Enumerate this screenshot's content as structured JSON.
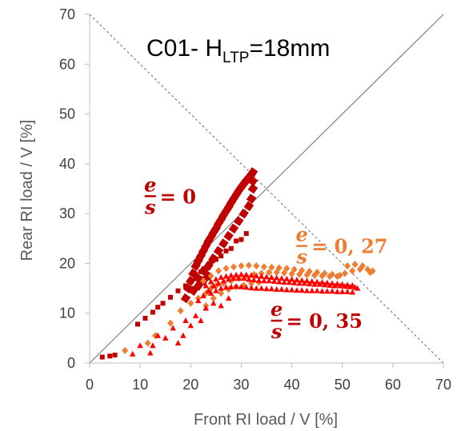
{
  "chart_data": {
    "type": "scatter",
    "title": {
      "main": "C01- H",
      "subscript": "LTP",
      "suffix": "=18mm"
    },
    "xlabel": "Front RI load / V [%]",
    "ylabel": "Rear RI load / V [%]",
    "xlim": [
      0,
      70
    ],
    "ylim": [
      0,
      70
    ],
    "x_ticks": [
      "0",
      "10",
      "20",
      "30",
      "40",
      "50",
      "60",
      "70"
    ],
    "y_ticks": [
      "0",
      "10",
      "20",
      "30",
      "40",
      "50",
      "60",
      "70"
    ],
    "grid": false,
    "legend": "none",
    "reference_lines": [
      {
        "name": "",
        "style": "solid",
        "color": "#808080",
        "from": [
          0,
          0
        ],
        "to": [
          70,
          70
        ]
      },
      {
        "name": "",
        "style": "dashed",
        "color": "#808080",
        "from": [
          0,
          70
        ],
        "to": [
          70,
          0
        ]
      }
    ],
    "annotations": [
      {
        "numerator": "e",
        "denominator": "s",
        "value": "= 0",
        "color": "#c00000"
      },
      {
        "numerator": "e",
        "denominator": "s",
        "value": "= 0, 27",
        "color": "#ed7d31"
      },
      {
        "numerator": "e",
        "denominator": "s",
        "value": "= 0, 35",
        "color": "#c00000"
      }
    ],
    "series": [
      {
        "color": "#c00000",
        "marker": "square",
        "points": [
          [
            2.5,
            1.2
          ],
          [
            4,
            1.4
          ],
          [
            5,
            1.6
          ],
          [
            9.5,
            7.8
          ],
          [
            11,
            9
          ],
          [
            12.5,
            10.2
          ],
          [
            13.5,
            11.2
          ],
          [
            14.5,
            12
          ],
          [
            16,
            13.2
          ],
          [
            17.5,
            14.5
          ],
          [
            19,
            15.5
          ],
          [
            20,
            16.3
          ],
          [
            21,
            17.2
          ],
          [
            22,
            18.3
          ],
          [
            23,
            19
          ],
          [
            24,
            20.3
          ],
          [
            25,
            20.8
          ],
          [
            26,
            21.5
          ],
          [
            27,
            22.5
          ],
          [
            28,
            23
          ],
          [
            29,
            24.5
          ],
          [
            30,
            24.8
          ],
          [
            31,
            26
          ]
        ]
      },
      {
        "color": "#c00000",
        "marker": "dense",
        "points": [
          [
            19,
            13
          ],
          [
            19.5,
            15
          ],
          [
            20,
            16.5
          ],
          [
            20.5,
            18
          ],
          [
            21,
            19.5
          ],
          [
            21.5,
            20.5
          ],
          [
            22,
            21.5
          ],
          [
            22.5,
            22.5
          ],
          [
            23,
            23.5
          ],
          [
            23.5,
            24.5
          ],
          [
            24,
            25.3
          ],
          [
            24.5,
            26.2
          ],
          [
            25,
            27
          ],
          [
            25.5,
            28
          ],
          [
            26,
            28.8
          ],
          [
            26.5,
            29.7
          ],
          [
            27,
            30.5
          ],
          [
            27.5,
            31.3
          ],
          [
            28,
            32.2
          ],
          [
            28.5,
            33
          ],
          [
            29,
            33.8
          ],
          [
            29.5,
            34.6
          ],
          [
            30,
            35.3
          ],
          [
            30.5,
            36
          ],
          [
            31,
            36.6
          ],
          [
            31.5,
            37.2
          ],
          [
            32,
            37.8
          ],
          [
            32.3,
            38.3
          ],
          [
            21.5,
            17
          ],
          [
            22.5,
            18.5
          ],
          [
            23.5,
            19.5
          ],
          [
            24.5,
            21
          ],
          [
            25.5,
            22.5
          ],
          [
            26.5,
            24
          ],
          [
            27.5,
            25.5
          ],
          [
            28.5,
            27
          ],
          [
            29.5,
            28.5
          ],
          [
            30.5,
            30
          ],
          [
            31.5,
            31.5
          ],
          [
            32,
            33
          ],
          [
            32.3,
            35
          ],
          [
            32.3,
            36.5
          ],
          [
            20.5,
            14.5
          ],
          [
            21.5,
            15.5
          ],
          [
            22.5,
            16.5
          ],
          [
            23.5,
            17.5
          ]
        ]
      },
      {
        "color": "#ed7d31",
        "marker": "diamond",
        "points": [
          [
            7,
            2.5
          ],
          [
            11.5,
            4
          ],
          [
            13,
            5.5
          ],
          [
            16,
            8
          ],
          [
            18,
            10.5
          ],
          [
            20,
            12
          ],
          [
            21.5,
            13
          ],
          [
            23,
            14
          ],
          [
            24,
            15
          ],
          [
            25,
            15.5
          ],
          [
            26.5,
            16
          ],
          [
            28,
            16.5
          ],
          [
            29.5,
            17
          ],
          [
            31,
            17.5
          ],
          [
            32.5,
            17.8
          ],
          [
            34,
            18
          ],
          [
            35.5,
            18.2
          ],
          [
            37,
            18.2
          ],
          [
            38.5,
            18.1
          ],
          [
            40,
            17.9
          ],
          [
            41.5,
            17.8
          ],
          [
            43,
            17.7
          ],
          [
            44.5,
            17.6
          ],
          [
            46,
            17.5
          ],
          [
            47.5,
            17.4
          ],
          [
            49,
            17.4
          ],
          [
            50.5,
            18
          ],
          [
            52,
            18.5
          ],
          [
            53.5,
            18.8
          ],
          [
            55,
            18.8
          ],
          [
            56,
            18.5
          ],
          [
            22.5,
            16.5
          ],
          [
            24,
            17.5
          ],
          [
            25.5,
            18.5
          ],
          [
            27,
            19
          ],
          [
            28.5,
            19.3
          ],
          [
            30,
            19.5
          ],
          [
            31.5,
            19.6
          ],
          [
            33,
            19.5
          ],
          [
            34.5,
            19.3
          ],
          [
            36,
            19.2
          ],
          [
            37.5,
            19.1
          ],
          [
            39,
            19
          ],
          [
            40.5,
            18.8
          ],
          [
            42,
            18.6
          ],
          [
            43.5,
            18.4
          ],
          [
            45,
            18.2
          ],
          [
            46.5,
            18
          ],
          [
            48,
            17.8
          ],
          [
            49.5,
            17.6
          ],
          [
            51,
            19.5
          ],
          [
            52.5,
            19.8
          ],
          [
            54,
            19.5
          ],
          [
            55.5,
            18.2
          ],
          [
            23,
            11.5
          ],
          [
            24.5,
            13
          ],
          [
            26,
            14
          ],
          [
            27.5,
            14.8
          ],
          [
            29,
            15.3
          ],
          [
            30.5,
            15.6
          ],
          [
            32,
            16
          ],
          [
            33.5,
            16.2
          ]
        ]
      },
      {
        "color": "#ff0000",
        "marker": "triangle",
        "points": [
          [
            8.5,
            1.8
          ],
          [
            10,
            3.5
          ],
          [
            12,
            2
          ],
          [
            12.5,
            3.5
          ],
          [
            13.5,
            5.5
          ],
          [
            15,
            5
          ],
          [
            16.5,
            7
          ],
          [
            17.5,
            4
          ],
          [
            18.5,
            5.5
          ],
          [
            19,
            8.5
          ],
          [
            20,
            7.5
          ],
          [
            21,
            9.5
          ],
          [
            22,
            8.5
          ],
          [
            23,
            11
          ],
          [
            24.5,
            12
          ],
          [
            26,
            11.5
          ],
          [
            27.5,
            13
          ],
          [
            21.5,
            12.5
          ],
          [
            22.5,
            13.5
          ],
          [
            23.5,
            14.5
          ],
          [
            24.5,
            15.5
          ],
          [
            25.5,
            16
          ],
          [
            26.5,
            16.5
          ],
          [
            27.5,
            16.8
          ],
          [
            28.5,
            17
          ],
          [
            29.5,
            17
          ],
          [
            30.5,
            17
          ],
          [
            31.5,
            16.8
          ],
          [
            32.5,
            16.7
          ],
          [
            33.5,
            16.6
          ],
          [
            34.5,
            16.5
          ],
          [
            35.5,
            16.5
          ],
          [
            36.5,
            16.4
          ],
          [
            37.5,
            16.3
          ],
          [
            38.5,
            16.2
          ],
          [
            39.5,
            16.2
          ],
          [
            40.5,
            16.1
          ],
          [
            41.5,
            16
          ],
          [
            42.5,
            16
          ],
          [
            43.5,
            15.9
          ],
          [
            44.5,
            15.8
          ],
          [
            45.5,
            15.8
          ],
          [
            46.5,
            15.7
          ],
          [
            47.5,
            15.6
          ],
          [
            48.5,
            15.5
          ],
          [
            49.5,
            15.5
          ],
          [
            50.5,
            15.4
          ],
          [
            51.5,
            15.3
          ],
          [
            52.5,
            15.2
          ],
          [
            53,
            15
          ],
          [
            23,
            15.5
          ],
          [
            24,
            16.3
          ],
          [
            25,
            16.8
          ],
          [
            26,
            17.2
          ],
          [
            27,
            17.4
          ],
          [
            28,
            17.6
          ],
          [
            29,
            17.7
          ],
          [
            30,
            17.8
          ],
          [
            31,
            17.7
          ],
          [
            32,
            17.6
          ],
          [
            33,
            17.5
          ],
          [
            34,
            17.4
          ],
          [
            35,
            17.3
          ],
          [
            36,
            17.2
          ],
          [
            37,
            17.1
          ],
          [
            38,
            17
          ],
          [
            39,
            16.9
          ],
          [
            40,
            16.8
          ],
          [
            41,
            16.7
          ],
          [
            42,
            16.6
          ],
          [
            43,
            16.5
          ],
          [
            44,
            16.4
          ],
          [
            45,
            16.3
          ],
          [
            46,
            16.2
          ],
          [
            47,
            16.1
          ],
          [
            48,
            16
          ],
          [
            49,
            15.9
          ],
          [
            50,
            15.8
          ],
          [
            51,
            15.7
          ],
          [
            52,
            15.6
          ],
          [
            24,
            14
          ],
          [
            25,
            14.5
          ],
          [
            26,
            15
          ],
          [
            27,
            15.2
          ],
          [
            28,
            15.3
          ],
          [
            29,
            15.4
          ],
          [
            30,
            15.3
          ],
          [
            31,
            15.2
          ],
          [
            32,
            15.1
          ],
          [
            33,
            15
          ],
          [
            34,
            15
          ],
          [
            35,
            14.9
          ],
          [
            36,
            14.9
          ],
          [
            37,
            14.8
          ],
          [
            38,
            14.8
          ],
          [
            39,
            14.7
          ],
          [
            40,
            14.7
          ],
          [
            41,
            14.6
          ],
          [
            42,
            14.6
          ],
          [
            43,
            14.5
          ],
          [
            44,
            14.5
          ],
          [
            45,
            14.5
          ],
          [
            46,
            14.4
          ],
          [
            47,
            14.4
          ],
          [
            48,
            14.4
          ],
          [
            49,
            14.3
          ],
          [
            50,
            14.3
          ],
          [
            51,
            14.3
          ],
          [
            52,
            14.2
          ]
        ]
      }
    ]
  }
}
